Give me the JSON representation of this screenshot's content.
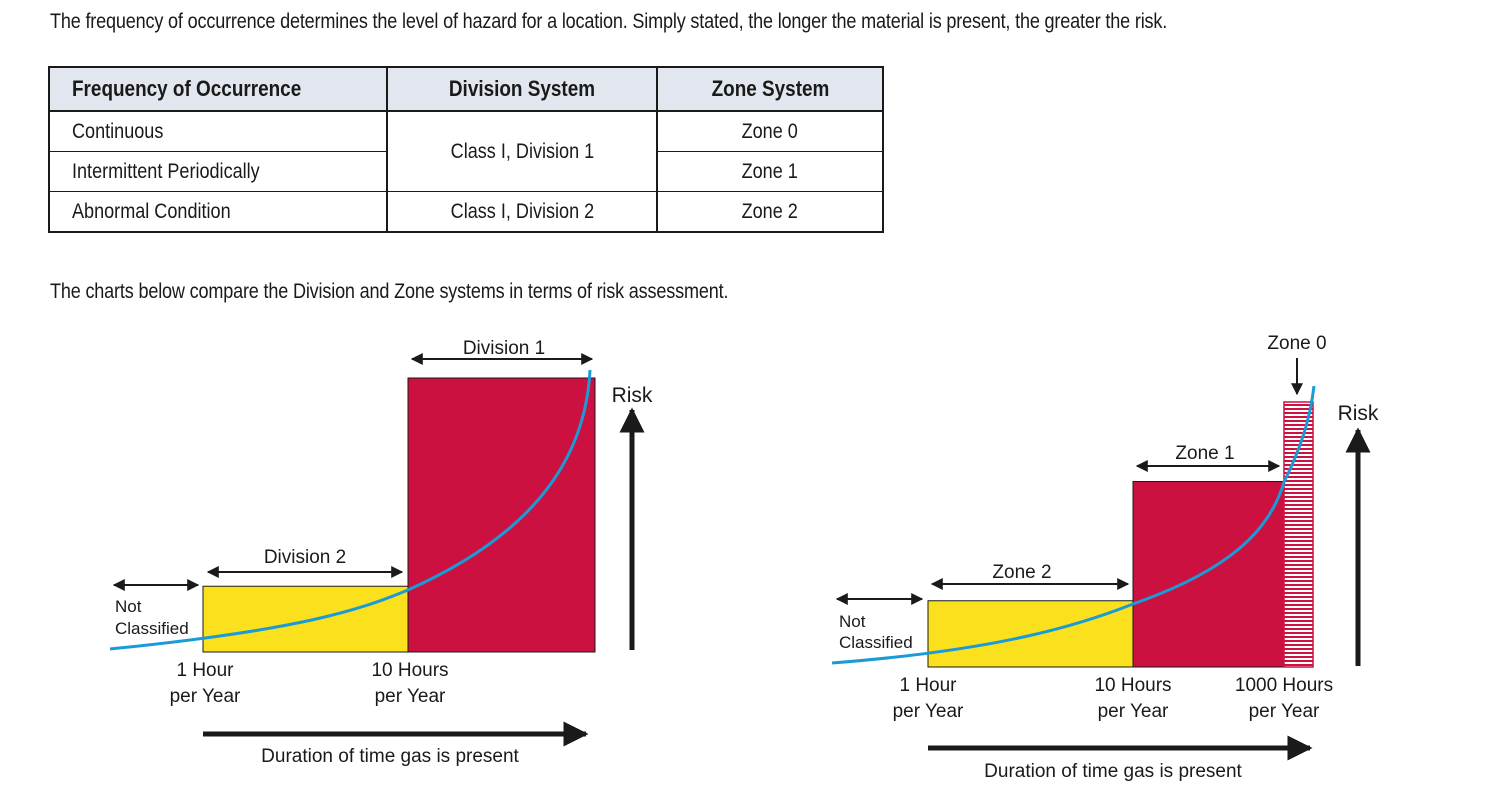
{
  "intro_text": "The frequency of occurrence determines the level of hazard for a location. Simply stated, the longer the material is present, the greater the risk.",
  "table": {
    "headers": [
      "Frequency of Occurrence",
      "Division System",
      "Zone System"
    ],
    "rows": [
      {
        "frequency": "Continuous",
        "zone": "Zone 0"
      },
      {
        "frequency": "Intermittent Periodically",
        "zone": "Zone 1"
      },
      {
        "frequency": "Abnormal Condition",
        "zone": "Zone 2"
      }
    ],
    "division_merged": "Class I, Division 1",
    "division_row3": "Class I, Division 2"
  },
  "charts_intro": "The charts below compare the Division and Zone systems in terms of risk assessment.",
  "colors": {
    "yellow": "#fbe01d",
    "crimson": "#cc1040",
    "curve": "#1a9bd6",
    "arrow": "#1a1a1a",
    "header_bg": "#e1e6ef"
  },
  "chart_data": [
    {
      "type": "area",
      "title": "",
      "xlabel": "Duration of time gas is present",
      "ylabel": "Risk",
      "x_ticks": [
        {
          "line1": "1 Hour",
          "line2": "per Year"
        },
        {
          "line1": "10 Hours",
          "line2": "per Year"
        }
      ],
      "bands": [
        {
          "label": "Not Classified",
          "line1": "Not",
          "line2": "Classified",
          "from": null,
          "to": "1 Hour per Year"
        },
        {
          "label": "Division 2",
          "from": "1 Hour per Year",
          "to": "10 Hours per Year",
          "color": "#fbe01d",
          "level": 0.24
        },
        {
          "label": "Division 1",
          "from": "10 Hours per Year",
          "to": null,
          "color": "#cc1040",
          "level": 1.0
        }
      ]
    },
    {
      "type": "area",
      "title": "",
      "xlabel": "Duration of time gas is present",
      "ylabel": "Risk",
      "x_ticks": [
        {
          "line1": "1 Hour",
          "line2": "per Year"
        },
        {
          "line1": "10 Hours",
          "line2": "per Year"
        },
        {
          "line1": "1000 Hours",
          "line2": "per Year"
        }
      ],
      "bands": [
        {
          "label": "Not Classified",
          "line1": "Not",
          "line2": "Classified",
          "from": null,
          "to": "1 Hour per Year"
        },
        {
          "label": "Zone 2",
          "from": "1 Hour per Year",
          "to": "10 Hours per Year",
          "color": "#fbe01d",
          "level": 0.25
        },
        {
          "label": "Zone 1",
          "from": "10 Hours per Year",
          "to": "1000 Hours per Year",
          "color": "#cc1040",
          "level": 0.7
        },
        {
          "label": "Zone 0",
          "from": "1000 Hours per Year",
          "to": null,
          "color": "#cc1040",
          "pattern": "stripes",
          "level": 1.0
        }
      ]
    }
  ]
}
